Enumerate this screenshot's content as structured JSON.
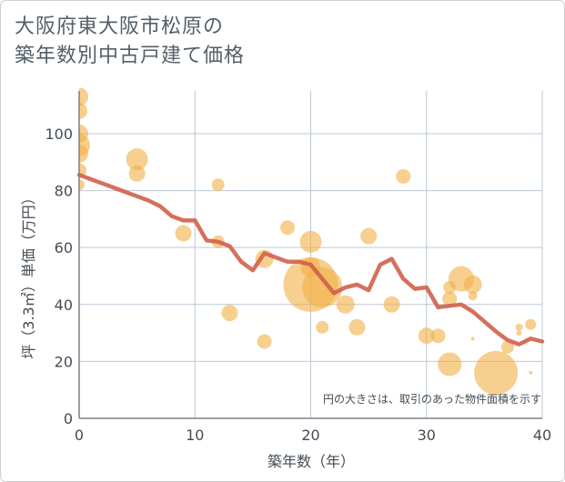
{
  "chart_data": {
    "type": "scatter",
    "title_lines": [
      "大阪府東大阪市松原の",
      "築年数別中古戸建て価格"
    ],
    "xlabel": "築年数（年）",
    "ylabel": "坪（3.3㎡）単価（万円）",
    "xlim": [
      0,
      40
    ],
    "ylim": [
      0,
      115
    ],
    "xticks": [
      0,
      10,
      20,
      30,
      40
    ],
    "yticks": [
      0,
      20,
      40,
      60,
      80,
      100
    ],
    "note": "円の大きさは、取引のあった物件面積を示す",
    "colors": {
      "bubble": "#f2b24b",
      "line": "#d0604a",
      "grid": "#bcc9d6"
    },
    "points": [
      {
        "x": 0,
        "y": 113,
        "s": 10
      },
      {
        "x": 0,
        "y": 108,
        "s": 9
      },
      {
        "x": 0,
        "y": 100,
        "s": 10
      },
      {
        "x": 0,
        "y": 96,
        "s": 12
      },
      {
        "x": 0,
        "y": 93,
        "s": 10
      },
      {
        "x": 0,
        "y": 87,
        "s": 8
      },
      {
        "x": 0,
        "y": 82,
        "s": 6
      },
      {
        "x": 5,
        "y": 91,
        "s": 12
      },
      {
        "x": 5,
        "y": 86,
        "s": 9
      },
      {
        "x": 9,
        "y": 65,
        "s": 9
      },
      {
        "x": 12,
        "y": 82,
        "s": 7
      },
      {
        "x": 12,
        "y": 62,
        "s": 7
      },
      {
        "x": 13,
        "y": 37,
        "s": 9
      },
      {
        "x": 16,
        "y": 56,
        "s": 10
      },
      {
        "x": 16,
        "y": 27,
        "s": 8
      },
      {
        "x": 18,
        "y": 67,
        "s": 8
      },
      {
        "x": 20,
        "y": 62,
        "s": 12
      },
      {
        "x": 20,
        "y": 53,
        "s": 11
      },
      {
        "x": 20,
        "y": 47,
        "s": 30
      },
      {
        "x": 21,
        "y": 46,
        "s": 22
      },
      {
        "x": 21,
        "y": 32,
        "s": 7
      },
      {
        "x": 23,
        "y": 40,
        "s": 10
      },
      {
        "x": 24,
        "y": 32,
        "s": 9
      },
      {
        "x": 25,
        "y": 64,
        "s": 9
      },
      {
        "x": 27,
        "y": 40,
        "s": 9
      },
      {
        "x": 28,
        "y": 85,
        "s": 8
      },
      {
        "x": 30,
        "y": 29,
        "s": 9
      },
      {
        "x": 31,
        "y": 29,
        "s": 8
      },
      {
        "x": 32,
        "y": 19,
        "s": 13
      },
      {
        "x": 32,
        "y": 46,
        "s": 7
      },
      {
        "x": 32,
        "y": 42,
        "s": 8
      },
      {
        "x": 33,
        "y": 49,
        "s": 14
      },
      {
        "x": 34,
        "y": 47,
        "s": 10
      },
      {
        "x": 34,
        "y": 43,
        "s": 5
      },
      {
        "x": 34,
        "y": 28,
        "s": 2
      },
      {
        "x": 36,
        "y": 16,
        "s": 24
      },
      {
        "x": 37,
        "y": 25,
        "s": 7
      },
      {
        "x": 38,
        "y": 32,
        "s": 4
      },
      {
        "x": 38,
        "y": 30,
        "s": 3
      },
      {
        "x": 39,
        "y": 33,
        "s": 6
      },
      {
        "x": 39,
        "y": 16,
        "s": 2
      }
    ],
    "trend": {
      "x": [
        0,
        1,
        2,
        3,
        4,
        5,
        6,
        7,
        8,
        9,
        10,
        11,
        12,
        13,
        14,
        15,
        16,
        17,
        18,
        19,
        20,
        21,
        22,
        23,
        24,
        25,
        26,
        27,
        28,
        29,
        30,
        31,
        32,
        33,
        34,
        35,
        36,
        37,
        38,
        39,
        40
      ],
      "y": [
        85.5,
        84,
        82.5,
        81,
        79.5,
        78,
        76.5,
        74.5,
        71,
        69.5,
        69.5,
        62.5,
        62,
        60.5,
        55,
        52,
        58,
        56.5,
        55,
        55,
        54,
        49,
        44,
        46,
        47,
        45,
        54,
        56,
        49,
        45.5,
        46,
        39,
        39.5,
        40,
        37.5,
        34,
        30.5,
        27.5,
        26,
        28,
        27
      ]
    }
  }
}
